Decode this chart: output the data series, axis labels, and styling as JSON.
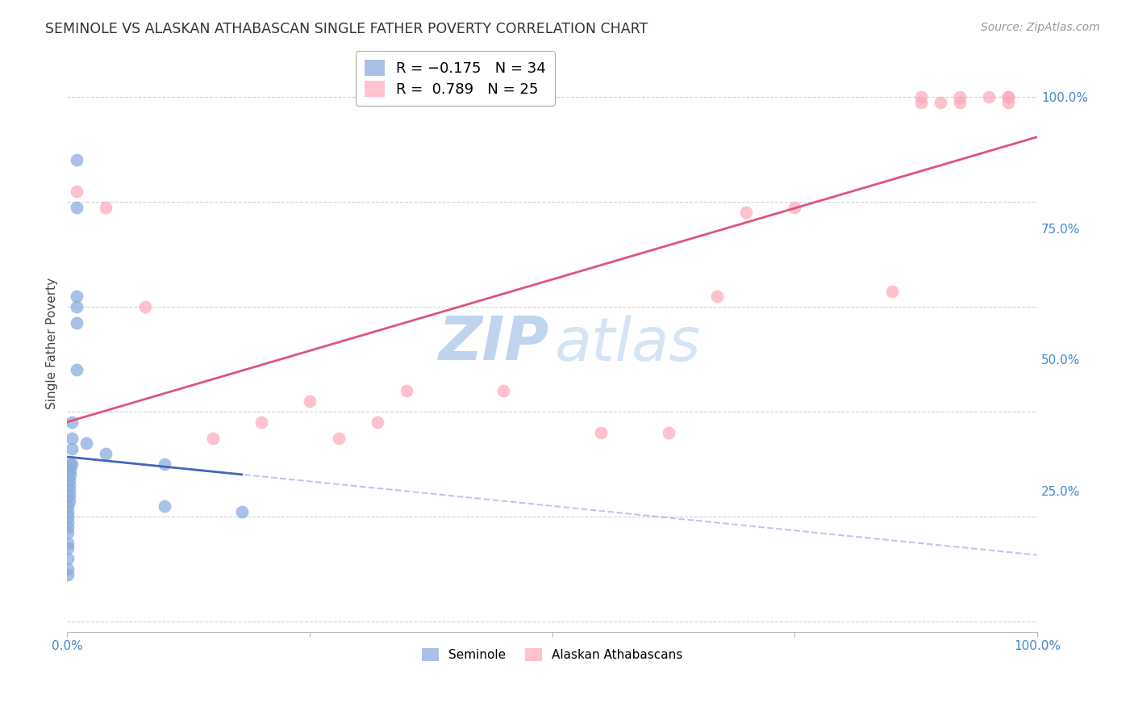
{
  "title": "SEMINOLE VS ALASKAN ATHABASCAN SINGLE FATHER POVERTY CORRELATION CHART",
  "source": "Source: ZipAtlas.com",
  "ylabel": "Single Father Poverty",
  "seminole_color": "#88aadd",
  "alaskan_color": "#ffaabb",
  "seminole_line_color": "#4466bb",
  "alaskan_line_color": "#dd5577",
  "background_color": "#ffffff",
  "grid_color": "#cccccc",
  "title_color": "#333333",
  "axis_label_color": "#4488cc",
  "seminole_x": [
    0.01,
    0.01,
    0.01,
    0.01,
    0.01,
    0.01,
    0.005,
    0.005,
    0.005,
    0.005,
    0.003,
    0.003,
    0.003,
    0.002,
    0.002,
    0.002,
    0.002,
    0.002,
    0.001,
    0.001,
    0.001,
    0.001,
    0.001,
    0.001,
    0.001,
    0.001,
    0.001,
    0.001,
    0.001,
    0.04,
    0.02,
    0.1,
    0.1,
    0.18
  ],
  "seminole_y": [
    0.88,
    0.79,
    0.62,
    0.6,
    0.57,
    0.48,
    0.38,
    0.35,
    0.33,
    0.3,
    0.3,
    0.29,
    0.28,
    0.27,
    0.26,
    0.25,
    0.24,
    0.23,
    0.22,
    0.21,
    0.2,
    0.19,
    0.18,
    0.17,
    0.15,
    0.14,
    0.12,
    0.1,
    0.09,
    0.32,
    0.34,
    0.3,
    0.22,
    0.21
  ],
  "alaskan_x": [
    0.01,
    0.04,
    0.08,
    0.15,
    0.2,
    0.25,
    0.28,
    0.32,
    0.35,
    0.45,
    0.55,
    0.62,
    0.67,
    0.7,
    0.75,
    0.85,
    0.88,
    0.88,
    0.9,
    0.92,
    0.92,
    0.95,
    0.97,
    0.97,
    0.97
  ],
  "alaskan_y": [
    0.82,
    0.79,
    0.6,
    0.35,
    0.38,
    0.42,
    0.35,
    0.38,
    0.44,
    0.44,
    0.36,
    0.36,
    0.62,
    0.78,
    0.79,
    0.63,
    0.99,
    1.0,
    0.99,
    1.0,
    0.99,
    1.0,
    1.0,
    0.99,
    1.0
  ],
  "xlim": [
    0.0,
    1.0
  ],
  "ylim": [
    -0.02,
    1.08
  ]
}
